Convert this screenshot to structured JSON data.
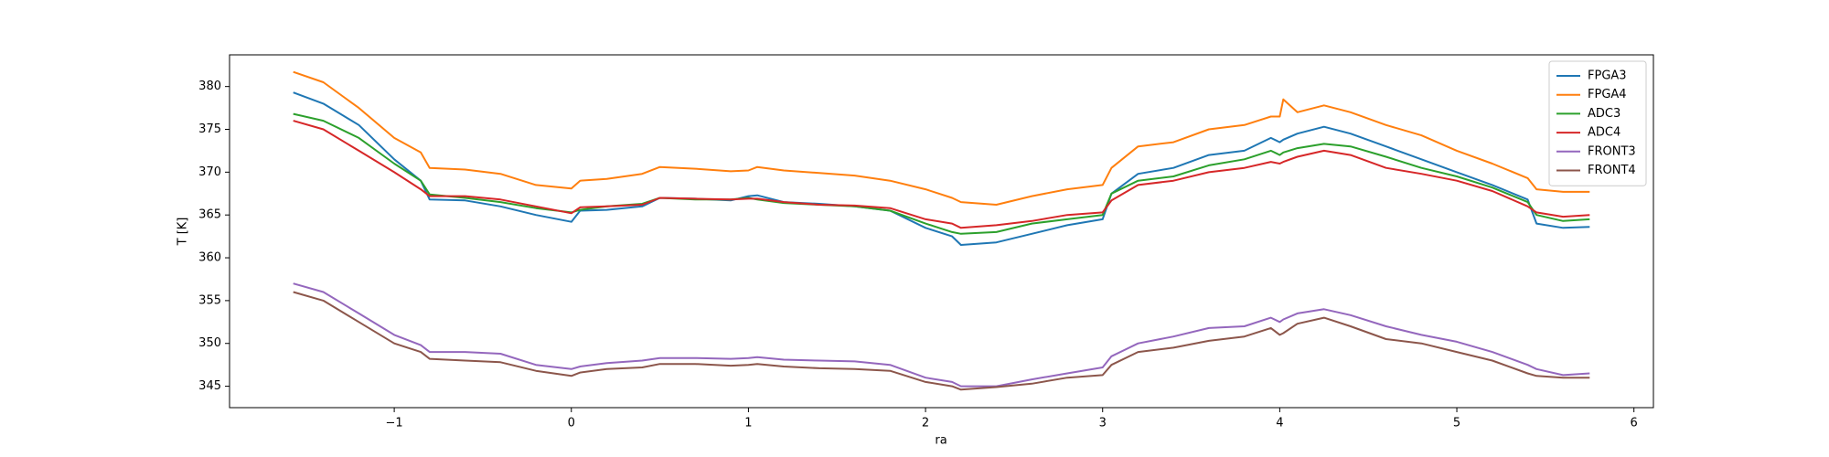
{
  "chart_data": {
    "type": "line",
    "xlabel": "ra",
    "ylabel": "T [K]",
    "x": [
      -1.57,
      -1.4,
      -1.2,
      -1.0,
      -0.85,
      -0.8,
      -0.6,
      -0.4,
      -0.2,
      0,
      0.05,
      0.2,
      0.4,
      0.5,
      0.7,
      0.9,
      1.0,
      1.05,
      1.2,
      1.4,
      1.6,
      1.8,
      2.0,
      2.15,
      2.2,
      2.4,
      2.6,
      2.8,
      3.0,
      3.05,
      3.2,
      3.4,
      3.6,
      3.8,
      3.95,
      4.0,
      4.02,
      4.1,
      4.25,
      4.4,
      4.6,
      4.8,
      5.0,
      5.2,
      5.4,
      5.45,
      5.6,
      5.75
    ],
    "series": [
      {
        "name": "FPGA3",
        "color": "#1f77b4",
        "values": [
          379.3,
          378,
          375.5,
          371.5,
          369,
          366.8,
          366.7,
          366,
          365,
          364.2,
          365.5,
          365.6,
          366,
          367,
          366.9,
          366.7,
          367.2,
          367.3,
          366.5,
          366.3,
          366,
          365.5,
          363.5,
          362.5,
          361.5,
          361.8,
          362.8,
          363.8,
          364.5,
          367.5,
          369.8,
          370.5,
          372,
          372.5,
          374,
          373.5,
          373.8,
          374.5,
          375.3,
          374.5,
          373,
          371.5,
          370,
          368.5,
          366.8,
          364,
          363.5,
          363.6
        ]
      },
      {
        "name": "FPGA4",
        "color": "#ff7f0e",
        "values": [
          381.7,
          380.5,
          377.5,
          374,
          372.3,
          370.5,
          370.3,
          369.8,
          368.5,
          368.1,
          369,
          369.2,
          369.8,
          370.6,
          370.4,
          370.1,
          370.2,
          370.6,
          370.2,
          369.9,
          369.6,
          369,
          368,
          367,
          366.5,
          366.2,
          367.2,
          368,
          368.5,
          370.5,
          373,
          373.5,
          375,
          375.5,
          376.5,
          376.5,
          378.5,
          377,
          377.8,
          377,
          375.5,
          374.3,
          372.5,
          371,
          369.3,
          368,
          367.7,
          367.7
        ]
      },
      {
        "name": "ADC3",
        "color": "#2ca02c",
        "values": [
          376.8,
          376,
          374,
          371,
          369,
          367.4,
          367,
          366.5,
          365.8,
          365.3,
          365.6,
          366,
          366.3,
          367,
          366.8,
          366.8,
          367,
          366.8,
          366.4,
          366.2,
          366,
          365.5,
          364,
          363,
          362.8,
          363,
          364,
          364.5,
          365,
          367.5,
          369,
          369.5,
          370.8,
          371.5,
          372.5,
          372,
          372.3,
          372.8,
          373.3,
          373,
          371.8,
          370.5,
          369.5,
          368.2,
          366.5,
          365,
          364.3,
          364.5
        ]
      },
      {
        "name": "ADC4",
        "color": "#d62728",
        "values": [
          376,
          375,
          372.5,
          370,
          368,
          367.2,
          367.2,
          366.8,
          366,
          365.2,
          365.9,
          366,
          366.2,
          367,
          366.9,
          366.8,
          366.9,
          366.9,
          366.5,
          366.2,
          366.1,
          365.8,
          364.5,
          364,
          363.5,
          363.8,
          364.3,
          365,
          365.3,
          366.7,
          368.5,
          369,
          370,
          370.5,
          371.2,
          371,
          371.2,
          371.8,
          372.5,
          372,
          370.5,
          369.8,
          369,
          367.8,
          366,
          365.3,
          364.8,
          365
        ]
      },
      {
        "name": "FRONT3",
        "color": "#9467bd",
        "values": [
          357,
          356,
          353.5,
          351,
          349.8,
          349,
          349,
          348.8,
          347.5,
          347,
          347.3,
          347.7,
          348,
          348.3,
          348.3,
          348.2,
          348.3,
          348.4,
          348.1,
          348,
          347.9,
          347.5,
          346,
          345.5,
          345,
          345,
          345.8,
          346.5,
          347.2,
          348.5,
          350,
          350.8,
          351.8,
          352,
          353,
          352.5,
          352.8,
          353.5,
          354,
          353.3,
          352,
          351,
          350.2,
          349,
          347.5,
          347,
          346.3,
          346.5
        ]
      },
      {
        "name": "FRONT4",
        "color": "#8c564b",
        "values": [
          356,
          355,
          352.5,
          350,
          349,
          348.2,
          348,
          347.8,
          346.8,
          346.2,
          346.6,
          347,
          347.2,
          347.6,
          347.6,
          347.4,
          347.5,
          347.6,
          347.3,
          347.1,
          347,
          346.8,
          345.5,
          345,
          344.6,
          344.9,
          345.3,
          346,
          346.3,
          347.5,
          349,
          349.5,
          350.3,
          350.8,
          351.8,
          351,
          351.2,
          352.3,
          353,
          352,
          350.5,
          350,
          349,
          348,
          346.5,
          346.2,
          346,
          346
        ]
      }
    ],
    "xlim": [
      -1.93,
      6.11
    ],
    "xticks": [
      {
        "value": -1,
        "label": "−1"
      },
      0,
      1,
      2,
      3,
      4,
      5,
      6
    ],
    "ylim": [
      342.5,
      383.7
    ],
    "yticks": [
      345,
      350,
      355,
      360,
      365,
      370,
      375,
      380
    ],
    "legend": "upper right",
    "grid": false
  }
}
